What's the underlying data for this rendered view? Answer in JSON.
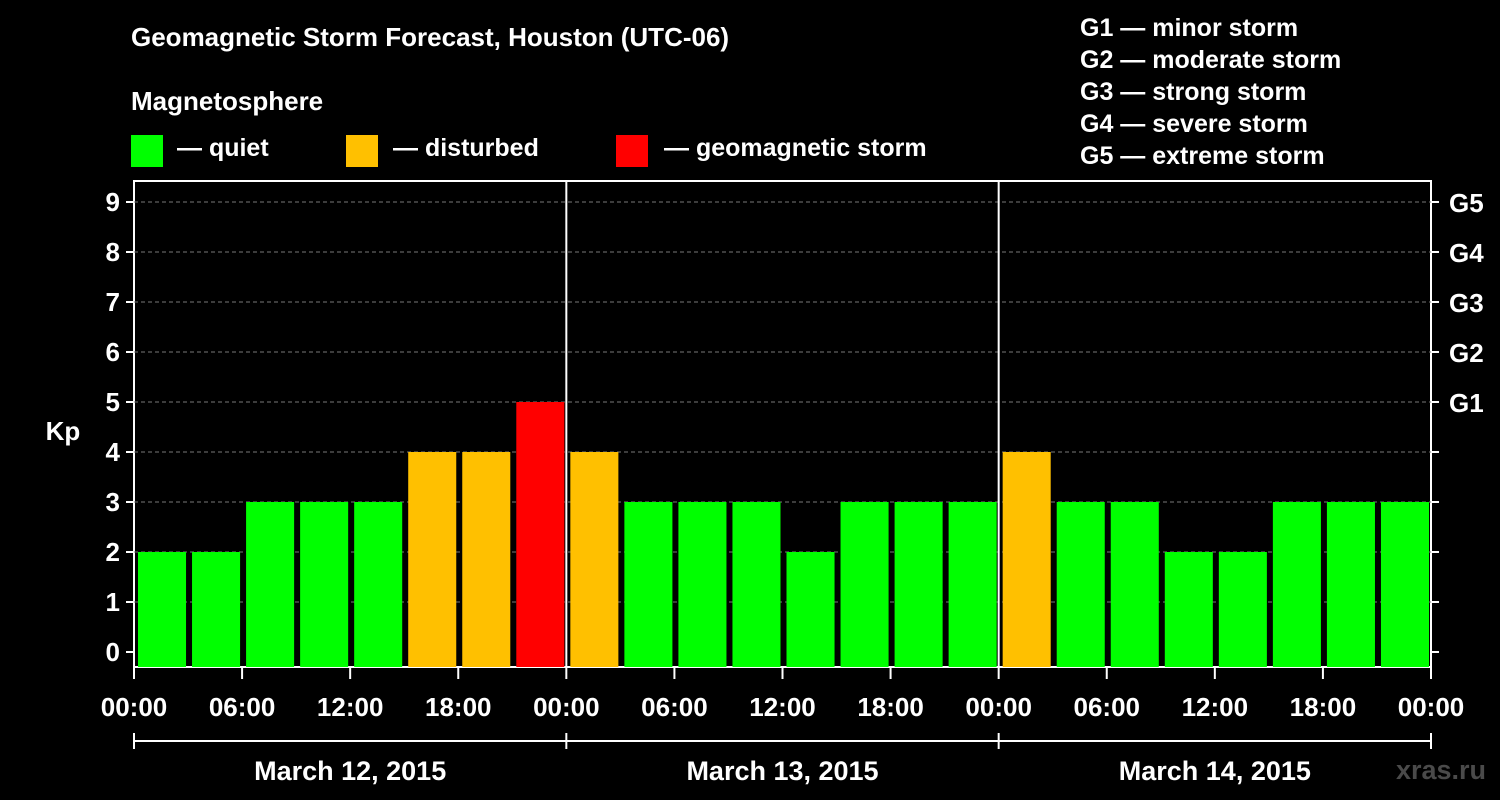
{
  "title": "Geomagnetic Storm Forecast, Houston (UTC-06)",
  "legend": {
    "heading": "Magnetosphere",
    "items": [
      {
        "label": "— quiet",
        "color": "#00ff00"
      },
      {
        "label": "— disturbed",
        "color": "#ffc000"
      },
      {
        "label": "— geomagnetic storm",
        "color": "#ff0000"
      }
    ]
  },
  "storm_scale": [
    "G1 — minor storm",
    "G2 — moderate storm",
    "G3 — strong storm",
    "G4 — severe storm",
    "G5 — extreme storm"
  ],
  "watermark": "xras.ru",
  "chart_data": {
    "type": "bar",
    "ylabel": "Kp",
    "ylim": [
      0,
      9
    ],
    "yticks": [
      "0",
      "1",
      "2",
      "3",
      "4",
      "5",
      "6",
      "7",
      "8",
      "9"
    ],
    "right_ticks": [
      {
        "kp": 5,
        "label": "G1"
      },
      {
        "kp": 6,
        "label": "G2"
      },
      {
        "kp": 7,
        "label": "G3"
      },
      {
        "kp": 8,
        "label": "G4"
      },
      {
        "kp": 9,
        "label": "G5"
      }
    ],
    "grid": "dashed horizontal",
    "xticks": [
      "00:00",
      "06:00",
      "12:00",
      "18:00",
      "00:00",
      "06:00",
      "12:00",
      "18:00",
      "00:00",
      "06:00",
      "12:00",
      "18:00",
      "00:00"
    ],
    "days": [
      "March 12, 2015",
      "March 13, 2015",
      "March 14, 2015"
    ],
    "bars_per_day": 8,
    "values": [
      2,
      2,
      3,
      3,
      3,
      4,
      4,
      5,
      4,
      3,
      3,
      3,
      2,
      3,
      3,
      3,
      4,
      3,
      3,
      2,
      2,
      3,
      3,
      3
    ],
    "colors": {
      "quiet": "#00ff00",
      "disturbed": "#ffc000",
      "storm": "#ff0000"
    }
  }
}
